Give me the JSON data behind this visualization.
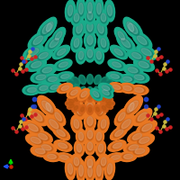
{
  "background_color": "#000000",
  "fig_width": 2.0,
  "fig_height": 2.0,
  "dpi": 100,
  "teal_color": "#1aab8a",
  "teal_dark": "#0d7060",
  "teal_mid": "#128a6e",
  "orange_color": "#e87722",
  "orange_dark": "#b85510",
  "orange_mid": "#d06018",
  "ligand_yellow": "#c8b840",
  "ligand_red": "#cc2222",
  "ligand_blue": "#2244cc",
  "ligand_purple": "#8844cc",
  "axis_green": "#00dd00",
  "axis_blue": "#2255ff",
  "axis_red": "#cc2200"
}
